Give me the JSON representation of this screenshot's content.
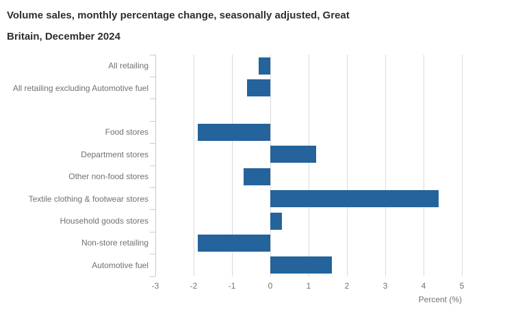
{
  "title_lines": [
    "Volume sales, monthly percentage change, seasonally adjusted, Great",
    "Britain, December 2024"
  ],
  "chart_data": {
    "type": "bar",
    "orientation": "horizontal",
    "title": "Volume sales, monthly percentage change, seasonally adjusted, Great Britain, December 2024",
    "categories": [
      "All retailing",
      "All retailing excluding Automotive fuel",
      "",
      "Food stores",
      "Department stores",
      "Other non-food stores",
      "Textile clothing & footwear stores",
      "Household goods stores",
      "Non-store retailing",
      "Automotive fuel"
    ],
    "values": [
      -0.3,
      -0.6,
      null,
      -1.9,
      1.2,
      -0.7,
      4.4,
      0.3,
      -1.9,
      1.6
    ],
    "xlabel": "Percent (%)",
    "xlim": [
      -3,
      5
    ],
    "xticks": [
      -3,
      -2,
      -1,
      0,
      1,
      2,
      3,
      4,
      5
    ],
    "grid": true,
    "legend": false,
    "colors": {
      "bar": "#24639b",
      "gridline": "#d9d9d9",
      "axis_line": "#c6cad0",
      "label_text": "#707071",
      "title_text": "#2e2e2e",
      "background": "#ffffff"
    }
  }
}
